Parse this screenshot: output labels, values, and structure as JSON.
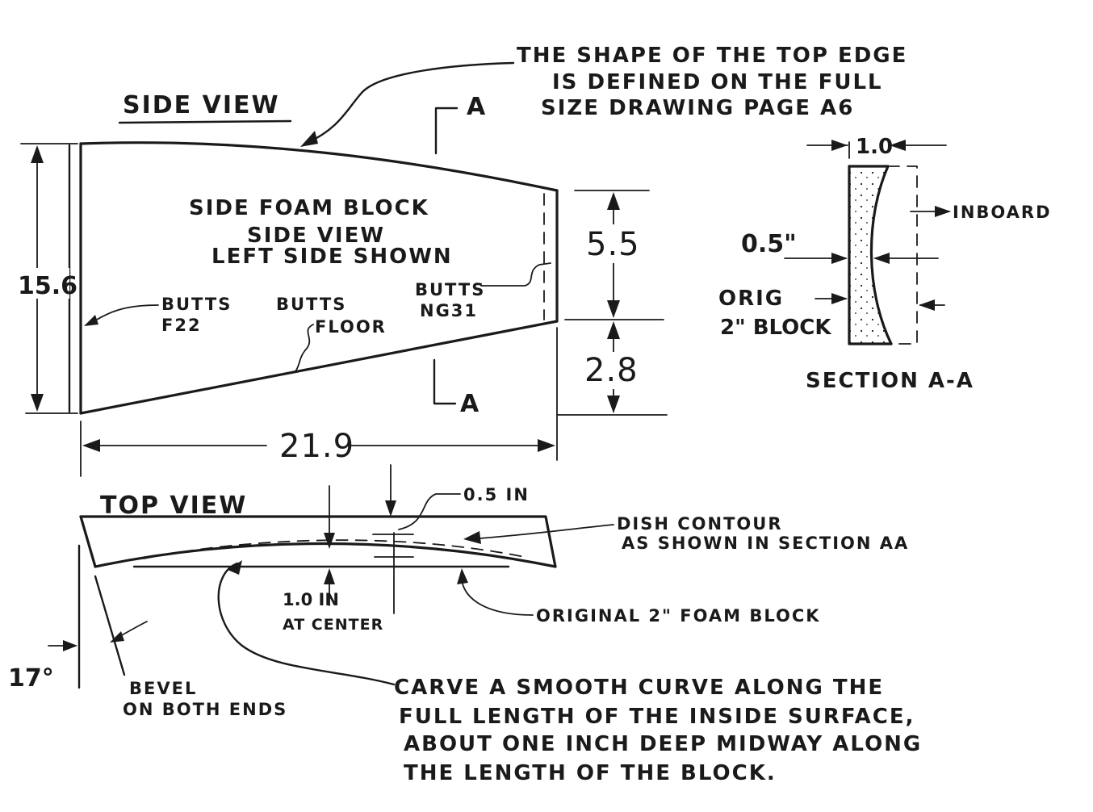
{
  "side_view": {
    "title": "SIDE VIEW",
    "block_label_1": "SIDE FOAM BLOCK",
    "block_label_2": "SIDE VIEW",
    "block_label_3": "LEFT SIDE SHOWN",
    "butts_f22_1": "BUTTS",
    "butts_f22_2": "F22",
    "butts_floor_1": "BUTTS",
    "butts_floor_2": "FLOOR",
    "butts_ng31_1": "BUTTS",
    "butts_ng31_2": "NG31",
    "dim_height": "15.6",
    "dim_length": "21.9",
    "dim_upper_right": "5.5",
    "dim_lower_right": "2.8",
    "section_marker": "A"
  },
  "top_edge_note": {
    "line1": "THE SHAPE OF THE TOP EDGE",
    "line2": "IS DEFINED ON THE FULL",
    "line3": "SIZE DRAWING PAGE A6"
  },
  "section_aa": {
    "title": "SECTION A-A",
    "dim_top": "1.0",
    "inboard": "INBOARD",
    "dim_side": "0.5\"",
    "orig_1": "ORIG",
    "orig_2": "2\" BLOCK"
  },
  "top_view": {
    "title": "TOP VIEW",
    "dim_dish": "0.5 IN",
    "dish_note_1": "DISH CONTOUR",
    "dish_note_2": "AS SHOWN IN SECTION AA",
    "center_1": "1.0 IN",
    "center_2": "AT CENTER",
    "original_block": "ORIGINAL 2\" FOAM BLOCK",
    "angle": "17°",
    "bevel_1": "BEVEL",
    "bevel_2": "ON BOTH ENDS"
  },
  "carve_note": {
    "line1": "CARVE A SMOOTH CURVE ALONG THE",
    "line2": "FULL LENGTH OF THE INSIDE SURFACE,",
    "line3": "ABOUT ONE INCH DEEP MIDWAY ALONG",
    "line4": "THE LENGTH OF THE BLOCK."
  },
  "colors": {
    "ink": "#1a1a1a",
    "paper": "#ffffff"
  }
}
